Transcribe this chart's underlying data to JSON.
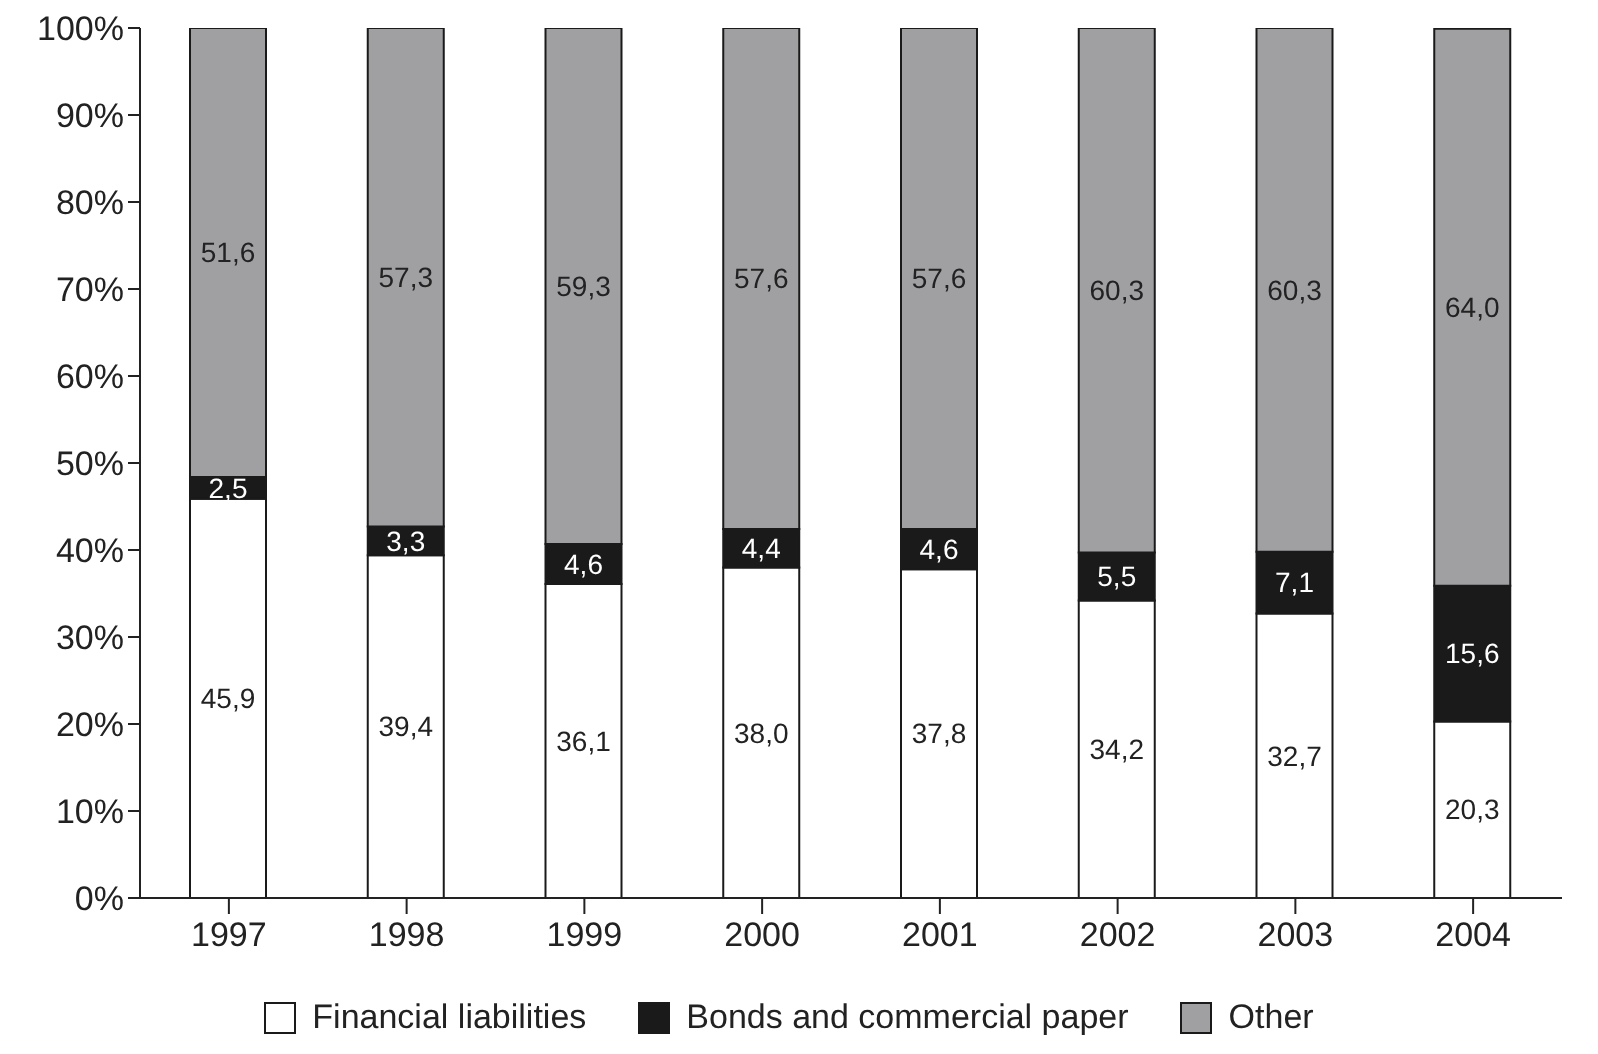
{
  "chart_data": {
    "type": "bar",
    "stacked": true,
    "categories": [
      "1997",
      "1998",
      "1999",
      "2000",
      "2001",
      "2002",
      "2003",
      "2004"
    ],
    "series": [
      {
        "name": "Financial liabilities",
        "color": "#ffffff",
        "values": [
          45.9,
          39.4,
          36.1,
          38.0,
          37.8,
          34.2,
          32.7,
          20.3
        ],
        "value_labels": [
          "45,9",
          "39,4",
          "36,1",
          "38,0",
          "37,8",
          "34,2",
          "32,7",
          "20,3"
        ]
      },
      {
        "name": "Bonds and commercial paper",
        "color": "#1a1a1a",
        "values": [
          2.5,
          3.3,
          4.6,
          4.4,
          4.6,
          5.5,
          7.1,
          15.6
        ],
        "value_labels": [
          "2,5",
          "3,3",
          "4,6",
          "4,4",
          "4,6",
          "5,5",
          "7,1",
          "15,6"
        ]
      },
      {
        "name": "Other",
        "color": "#a0a0a3",
        "values": [
          51.6,
          57.3,
          59.3,
          57.6,
          57.6,
          60.3,
          60.3,
          64.0
        ],
        "value_labels": [
          "51,6",
          "57,3",
          "59,3",
          "57,6",
          "57,6",
          "60,3",
          "60,3",
          "64,0"
        ]
      }
    ],
    "ylim": [
      0,
      100
    ],
    "yticks": [
      {
        "value": 0,
        "label": "0%"
      },
      {
        "value": 10,
        "label": "10%"
      },
      {
        "value": 20,
        "label": "20%"
      },
      {
        "value": 30,
        "label": "30%"
      },
      {
        "value": 40,
        "label": "40%"
      },
      {
        "value": 50,
        "label": "50%"
      },
      {
        "value": 60,
        "label": "60%"
      },
      {
        "value": 70,
        "label": "70%"
      },
      {
        "value": 80,
        "label": "80%"
      },
      {
        "value": 90,
        "label": "90%"
      },
      {
        "value": 100,
        "label": "100%"
      }
    ],
    "grid": false,
    "legend": "bottom"
  }
}
